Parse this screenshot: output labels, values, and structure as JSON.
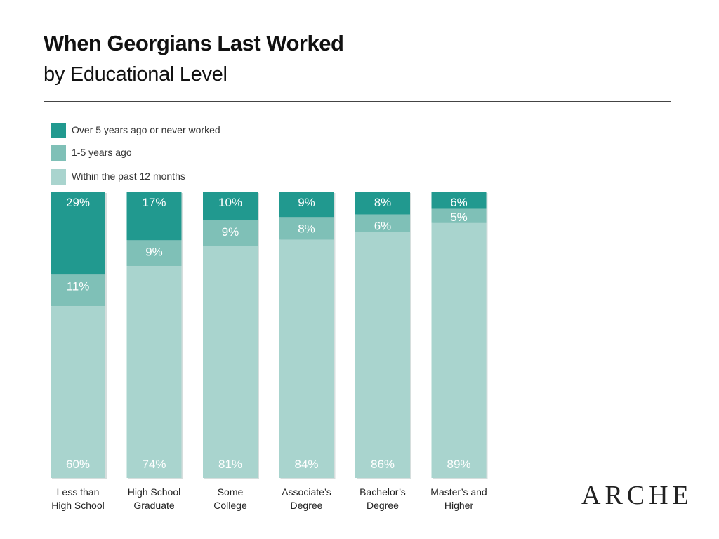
{
  "title": "When Georgians Last Worked",
  "subtitle": "by Educational Level",
  "logo_text": "ARCHE",
  "colors": {
    "over5": "#21998f",
    "one_to_five": "#7fc0b7",
    "within12": "#a9d4ce"
  },
  "chart_data": {
    "type": "bar",
    "stacked": true,
    "normalized_percent": true,
    "title": "When Georgians Last Worked",
    "subtitle": "by Educational Level",
    "categories": [
      [
        "Less than",
        "High School"
      ],
      [
        "High School",
        "Graduate"
      ],
      [
        "Some",
        "College"
      ],
      [
        "Associate’s",
        "Degree"
      ],
      [
        "Bachelor’s",
        "Degree"
      ],
      [
        "Master’s and",
        "Higher"
      ]
    ],
    "series": [
      {
        "name": "Over 5 years ago or never worked",
        "values": [
          29,
          17,
          10,
          9,
          8,
          6
        ],
        "labels": [
          "29%",
          "17%",
          "10%",
          "9%",
          "8%",
          "6%"
        ]
      },
      {
        "name": "1-5 years ago",
        "values": [
          11,
          9,
          9,
          8,
          6,
          5
        ],
        "labels": [
          "11%",
          "9%",
          "9%",
          "8%",
          "6%",
          "5%"
        ]
      },
      {
        "name": "Within the past 12 months",
        "values": [
          60,
          74,
          81,
          84,
          86,
          89
        ],
        "labels": [
          "60%",
          "74%",
          "81%",
          "84%",
          "86%",
          "89%"
        ]
      }
    ],
    "ylim": [
      0,
      100
    ],
    "legend_position": "top-left",
    "grid": false
  }
}
